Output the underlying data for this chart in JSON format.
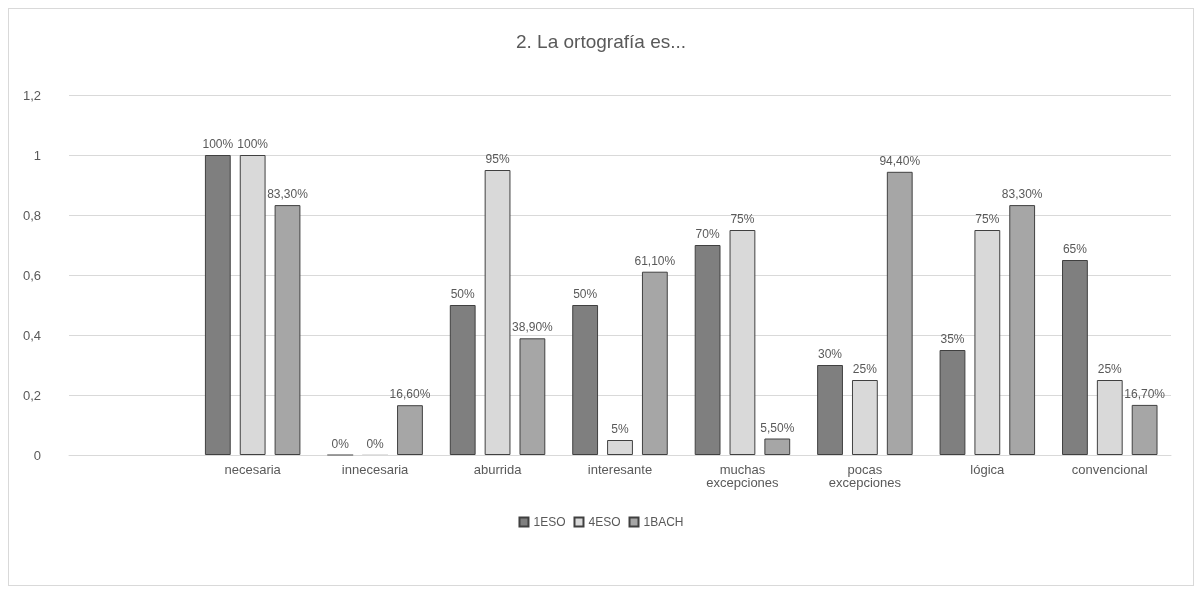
{
  "chart_data": {
    "type": "bar",
    "title": "2. La ortografía es...",
    "categories": [
      null,
      "necesaria",
      "innecesaria",
      "aburrida",
      "interesante",
      "muchas excepciones",
      "pocas excepciones",
      "lógica",
      "convencional"
    ],
    "series": [
      {
        "name": "1ESO",
        "color": "#7f7f7f",
        "values": [
          null,
          1,
          0,
          0.5,
          0.5,
          0.7,
          0.3,
          0.35,
          0.65
        ],
        "value_labels": [
          null,
          "100%",
          "0%",
          "50%",
          "50%",
          "70%",
          "30%",
          "35%",
          "65%"
        ]
      },
      {
        "name": "4ESO",
        "color": "#d9d9d9",
        "values": [
          null,
          1,
          0,
          0.95,
          0.05,
          0.75,
          0.25,
          0.75,
          0.25
        ],
        "value_labels": [
          null,
          "100%",
          "0%",
          "95%",
          "5%",
          "75%",
          "25%",
          "75%",
          "25%"
        ]
      },
      {
        "name": "1BACH",
        "color": "#a6a6a6",
        "values": [
          null,
          0.833,
          0.166,
          0.389,
          0.611,
          0.055,
          0.944,
          0.833,
          0.167
        ],
        "value_labels": [
          null,
          "83,30%",
          "16,60%",
          "38,90%",
          "61,10%",
          "5,50%",
          "94,40%",
          "83,30%",
          "16,70%"
        ]
      }
    ],
    "ylim": [
      0,
      1.2
    ],
    "yticks": [
      0,
      {
        "value": 0.2,
        "label": "0,2"
      },
      {
        "value": 0.4,
        "label": "0,4"
      },
      {
        "value": 0.6,
        "label": "0,6"
      },
      {
        "value": 0.8,
        "label": "0,8"
      },
      1,
      {
        "value": 1.2,
        "label": "1,2"
      }
    ],
    "grid": "y",
    "legend": "bottom"
  }
}
